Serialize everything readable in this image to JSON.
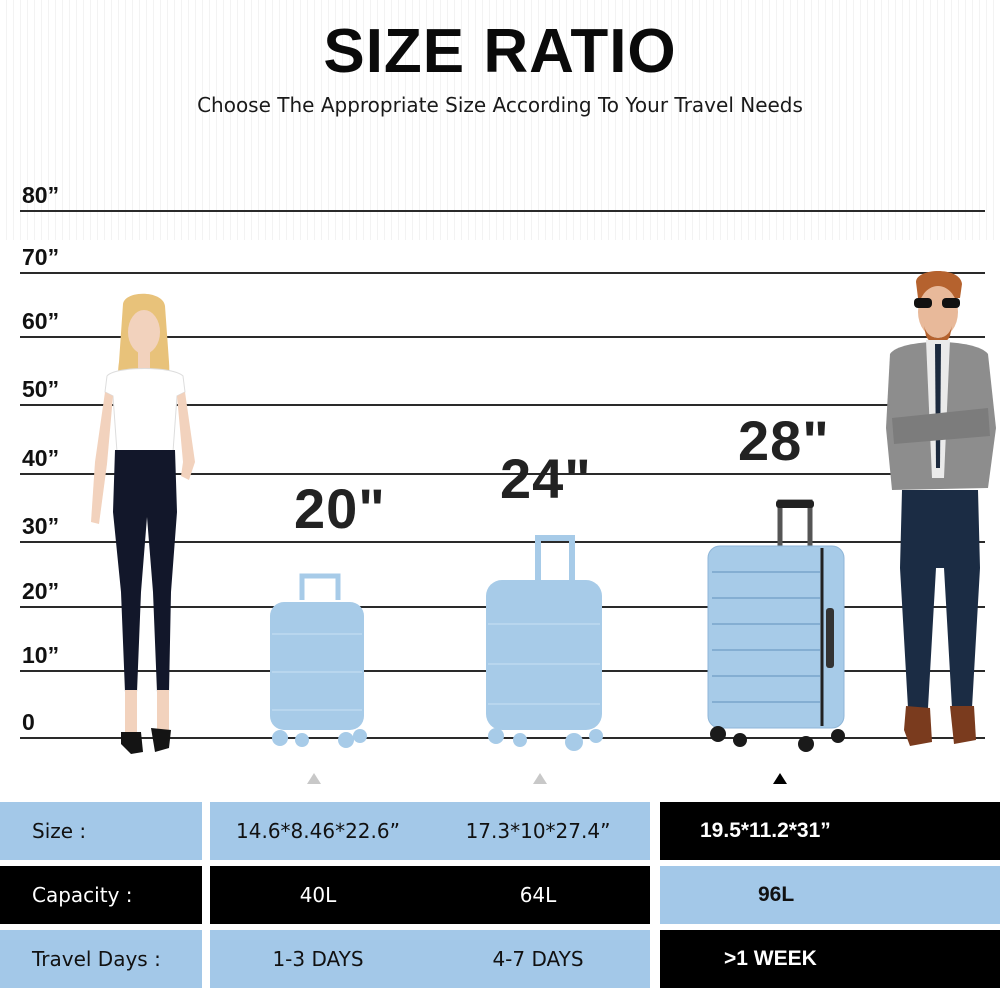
{
  "header": {
    "title": "SIZE RATIO",
    "subtitle": "Choose The Appropriate Size According To Your Travel Needs"
  },
  "scale": {
    "labels": [
      "80”",
      "70”",
      "60”",
      "50”",
      "40”",
      "30”",
      "20”",
      "10”",
      "0"
    ]
  },
  "suitcases": [
    {
      "size_label": "20\"",
      "selected": false
    },
    {
      "size_label": "24\"",
      "selected": false
    },
    {
      "size_label": "28\"",
      "selected": true
    }
  ],
  "table": {
    "rows": [
      {
        "label": "Size :",
        "values": [
          "14.6*8.46*22.6”",
          "17.3*10*27.4”",
          "19.5*11.2*31”"
        ]
      },
      {
        "label": "Capacity :",
        "values": [
          "40L",
          "64L",
          "96L"
        ]
      },
      {
        "label": "Travel Days :",
        "values": [
          "1-3 DAYS",
          "4-7 DAYS",
          ">1 WEEK"
        ]
      }
    ]
  },
  "colors": {
    "light_blue": "#a3c8e8",
    "suitcase_blue": "#a7cbe8",
    "black": "#000000"
  }
}
